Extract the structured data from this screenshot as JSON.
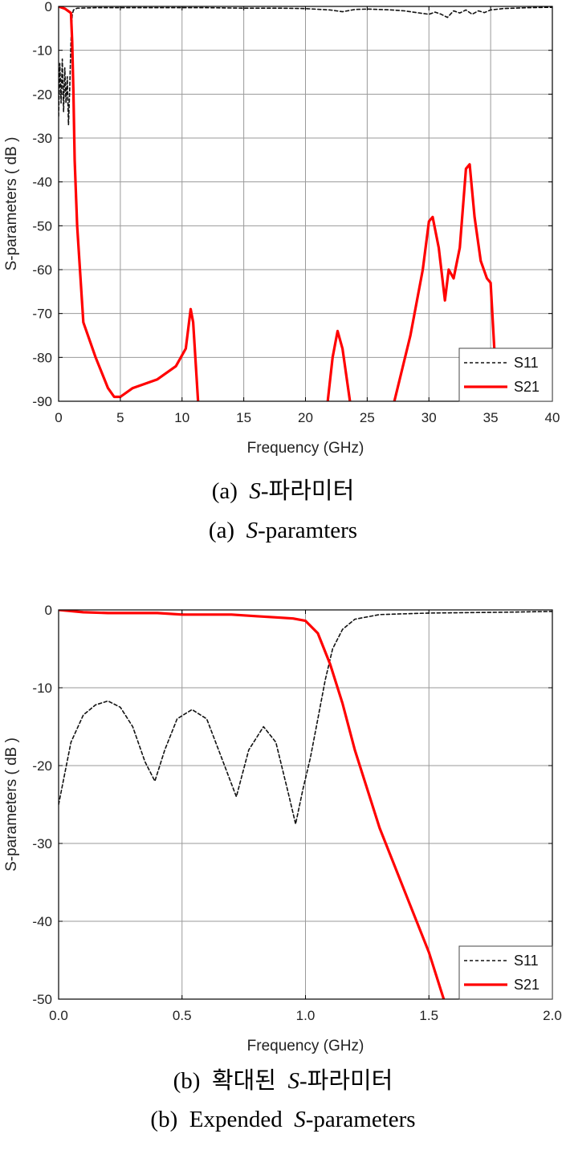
{
  "colors": {
    "s11": "#111111",
    "s21": "#ff0000",
    "grid": "#9a9a9a"
  },
  "chart_data": [
    {
      "type": "line",
      "xlabel": "Frequency (GHz)",
      "ylabel": "S-parameters ( dB )",
      "xlim": [
        0,
        40
      ],
      "ylim": [
        -90,
        0
      ],
      "xticks": [
        0,
        5,
        10,
        15,
        20,
        25,
        30,
        35,
        40
      ],
      "yticks": [
        0,
        -10,
        -20,
        -30,
        -40,
        -50,
        -60,
        -70,
        -80,
        -90
      ],
      "grid": true,
      "legend_position": "bottom-right",
      "series": [
        {
          "name": "S11",
          "style": "dashed",
          "x": [
            0,
            0.1,
            0.2,
            0.3,
            0.4,
            0.5,
            0.6,
            0.7,
            0.8,
            0.9,
            1.0,
            1.1,
            1.2,
            1.5,
            3,
            5,
            8,
            10,
            12,
            15,
            18,
            20,
            22,
            23,
            24,
            25,
            27,
            28,
            29,
            30,
            30.5,
            31,
            31.5,
            32,
            32.5,
            33,
            33.5,
            34,
            34.5,
            35,
            36,
            38,
            40
          ],
          "y": [
            -25,
            -13,
            -22,
            -12,
            -24,
            -14,
            -22,
            -16,
            -27,
            -19,
            -8,
            -2,
            -0.8,
            -0.4,
            -0.3,
            -0.3,
            -0.3,
            -0.3,
            -0.3,
            -0.4,
            -0.4,
            -0.5,
            -0.8,
            -1.2,
            -0.7,
            -0.6,
            -0.8,
            -1.0,
            -1.4,
            -1.8,
            -1.3,
            -1.8,
            -2.5,
            -1.0,
            -1.5,
            -0.8,
            -1.8,
            -1.0,
            -1.4,
            -0.8,
            -0.5,
            -0.3,
            -0.2
          ]
        },
        {
          "name": "S21",
          "style": "solid",
          "segments": [
            {
              "x": [
                0,
                0.5,
                1.0,
                1.1,
                1.2,
                1.3,
                1.5,
                2.0,
                3.0,
                4.0,
                4.5,
                5.0,
                6.0,
                8.0,
                9.5,
                10.3,
                10.7,
                10.9,
                11.3
              ],
              "y": [
                0,
                -0.5,
                -1.5,
                -8,
                -20,
                -35,
                -50,
                -72,
                -80,
                -87,
                -89,
                -89,
                -87,
                -85,
                -82,
                -78,
                -69,
                -72,
                -90
              ]
            },
            {
              "x": [
                21.8,
                22.2,
                22.6,
                23.0,
                23.6
              ],
              "y": [
                -90,
                -80,
                -74,
                -78,
                -90
              ]
            },
            {
              "x": [
                27.2,
                28.5,
                29.5,
                30.0,
                30.3,
                30.8,
                31.3,
                31.6,
                32.0,
                32.5,
                33.0,
                33.3,
                33.7,
                34.2,
                34.7,
                35.0,
                35.3
              ],
              "y": [
                -90,
                -75,
                -60,
                -49,
                -48,
                -55,
                -67,
                -60,
                -62,
                -55,
                -37,
                -36,
                -48,
                -58,
                -62,
                -63,
                -78
              ]
            }
          ]
        }
      ]
    },
    {
      "type": "line",
      "xlabel": "Frequency (GHz)",
      "ylabel": "S-parameters ( dB )",
      "xlim": [
        0,
        2
      ],
      "ylim": [
        -50,
        0
      ],
      "xticks": [
        "0.0",
        "0.5",
        "1.0",
        "1.5",
        "2.0"
      ],
      "yticks": [
        0,
        -10,
        -20,
        -30,
        -40,
        -50
      ],
      "grid": true,
      "legend_position": "bottom-right",
      "series": [
        {
          "name": "S11",
          "style": "dashed",
          "x": [
            0,
            0.05,
            0.1,
            0.15,
            0.2,
            0.25,
            0.3,
            0.35,
            0.39,
            0.43,
            0.48,
            0.54,
            0.6,
            0.66,
            0.72,
            0.77,
            0.83,
            0.88,
            0.93,
            0.96,
            0.99,
            1.02,
            1.05,
            1.08,
            1.11,
            1.15,
            1.2,
            1.3,
            1.5,
            1.8,
            2.0
          ],
          "y": [
            -25,
            -17,
            -13.5,
            -12.2,
            -11.7,
            -12.5,
            -15,
            -19.5,
            -22,
            -18,
            -14,
            -12.8,
            -14,
            -19,
            -24,
            -18,
            -15,
            -17,
            -23.5,
            -27.5,
            -23,
            -19,
            -14,
            -9,
            -5,
            -2.5,
            -1.2,
            -0.6,
            -0.4,
            -0.3,
            -0.2
          ]
        },
        {
          "name": "S21",
          "style": "solid",
          "x": [
            0,
            0.1,
            0.2,
            0.3,
            0.4,
            0.5,
            0.6,
            0.7,
            0.8,
            0.9,
            0.95,
            1.0,
            1.05,
            1.1,
            1.15,
            1.2,
            1.3,
            1.4,
            1.5,
            1.56
          ],
          "y": [
            0,
            -0.3,
            -0.4,
            -0.4,
            -0.4,
            -0.6,
            -0.6,
            -0.6,
            -0.8,
            -1.0,
            -1.1,
            -1.4,
            -3,
            -7,
            -12,
            -18,
            -28,
            -36,
            -44,
            -50
          ]
        }
      ]
    }
  ],
  "captions": {
    "a_prefix": "(a)",
    "a_s": "S",
    "a_korean": "-파라미터",
    "a_english": "-paramters",
    "b_prefix": "(b)",
    "b_korean_pre": "확대된",
    "b_s": "S",
    "b_korean": "-파라미터",
    "b_english_pre": "Expended",
    "b_english": "-parameters"
  }
}
